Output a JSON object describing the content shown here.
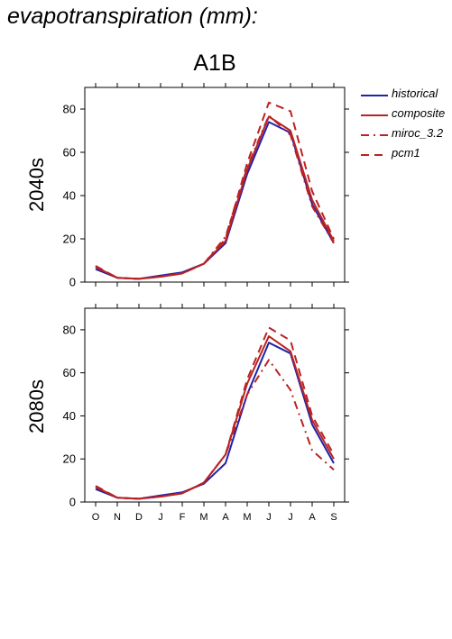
{
  "header": {
    "title": "evapotranspiration (mm):",
    "scenario": "A1B"
  },
  "colors": {
    "historical": "#2222aa",
    "composite": "#bb2222",
    "miroc": "#bb2222",
    "pcm1": "#bb2222"
  },
  "legend": [
    {
      "name": "historical",
      "style": "solid",
      "color": "#2222aa"
    },
    {
      "name": "composite",
      "style": "solid",
      "color": "#bb2222"
    },
    {
      "name": "miroc_3.2",
      "style": "dashdot",
      "color": "#bb2222"
    },
    {
      "name": "pcm1",
      "style": "dashed",
      "color": "#bb2222"
    }
  ],
  "chart_data": [
    {
      "type": "line",
      "row_label": "2040s",
      "categories": [
        "O",
        "N",
        "D",
        "J",
        "F",
        "M",
        "A",
        "M",
        "J",
        "J",
        "A",
        "S"
      ],
      "ylim": [
        0,
        90
      ],
      "yticks": [
        0,
        20,
        40,
        60,
        80
      ],
      "series": [
        {
          "name": "historical",
          "values": [
            6,
            2,
            1.5,
            3,
            4.5,
            8.5,
            18,
            50,
            74,
            69,
            36,
            18
          ]
        },
        {
          "name": "composite",
          "values": [
            7,
            2,
            1.5,
            2.5,
            4,
            8.5,
            19,
            52,
            76.5,
            70,
            38,
            19
          ]
        },
        {
          "name": "miroc_3.2",
          "values": [
            7,
            2,
            1.5,
            2.5,
            4,
            8.5,
            21,
            53,
            77,
            68,
            35,
            18
          ]
        },
        {
          "name": "pcm1",
          "values": [
            7.5,
            2,
            1.5,
            2.5,
            4,
            8.5,
            20,
            55,
            83,
            79,
            42,
            20
          ]
        }
      ]
    },
    {
      "type": "line",
      "row_label": "2080s",
      "categories": [
        "O",
        "N",
        "D",
        "J",
        "F",
        "M",
        "A",
        "M",
        "J",
        "J",
        "A",
        "S"
      ],
      "ylim": [
        0,
        90
      ],
      "yticks": [
        0,
        20,
        40,
        60,
        80
      ],
      "series": [
        {
          "name": "historical",
          "values": [
            6,
            2,
            1.5,
            3,
            4.5,
            8.5,
            18,
            50,
            74,
            69,
            36,
            18
          ]
        },
        {
          "name": "composite",
          "values": [
            7,
            2,
            1.5,
            2.5,
            4,
            9,
            22,
            55,
            77,
            70,
            38,
            20
          ]
        },
        {
          "name": "miroc_3.2",
          "values": [
            7,
            2,
            1.5,
            2.5,
            4,
            9,
            22,
            50,
            66,
            52,
            24,
            15
          ]
        },
        {
          "name": "pcm1",
          "values": [
            7.5,
            2,
            1.5,
            2.5,
            4,
            9,
            22,
            57,
            81,
            75,
            40,
            22
          ]
        }
      ]
    }
  ]
}
